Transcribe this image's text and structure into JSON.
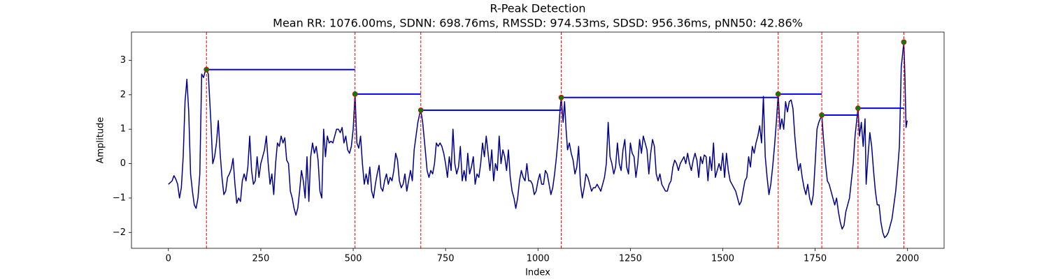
{
  "chart_data": {
    "type": "line",
    "title": "R-Peak Detection",
    "subtitle": "Mean RR: 1076.00ms, SDNN: 698.76ms, RMSSD: 974.53ms, SDSD: 956.36ms, pNN50: 42.86%",
    "x_label": "Index",
    "y_label": "Amplitude",
    "x": [
      0,
      10,
      15,
      20,
      25,
      30,
      35,
      40,
      45,
      50,
      55,
      60,
      65,
      70,
      75,
      80,
      85,
      90,
      95,
      100,
      103,
      108,
      115,
      120,
      125,
      130,
      135,
      140,
      145,
      150,
      155,
      160,
      165,
      170,
      175,
      180,
      185,
      190,
      195,
      200,
      205,
      210,
      215,
      220,
      225,
      230,
      235,
      240,
      245,
      250,
      255,
      260,
      265,
      270,
      275,
      280,
      285,
      290,
      295,
      300,
      305,
      310,
      315,
      320,
      325,
      330,
      335,
      340,
      345,
      350,
      355,
      360,
      365,
      370,
      375,
      380,
      385,
      390,
      395,
      400,
      405,
      410,
      415,
      420,
      425,
      430,
      435,
      440,
      445,
      450,
      455,
      460,
      465,
      470,
      475,
      480,
      485,
      490,
      495,
      500,
      505,
      510,
      515,
      520,
      525,
      530,
      535,
      540,
      545,
      550,
      555,
      560,
      565,
      570,
      575,
      580,
      585,
      590,
      595,
      600,
      605,
      610,
      615,
      620,
      625,
      630,
      635,
      640,
      645,
      650,
      655,
      660,
      665,
      670,
      675,
      680,
      683,
      688,
      695,
      700,
      705,
      710,
      715,
      720,
      725,
      730,
      735,
      740,
      745,
      750,
      755,
      760,
      765,
      770,
      775,
      780,
      785,
      790,
      795,
      800,
      805,
      810,
      815,
      820,
      825,
      830,
      835,
      840,
      845,
      850,
      855,
      860,
      865,
      870,
      875,
      880,
      885,
      890,
      895,
      900,
      905,
      910,
      915,
      920,
      925,
      930,
      935,
      940,
      945,
      950,
      955,
      960,
      965,
      970,
      975,
      980,
      985,
      990,
      995,
      1000,
      1005,
      1010,
      1015,
      1020,
      1025,
      1030,
      1035,
      1040,
      1045,
      1050,
      1055,
      1060,
      1063,
      1068,
      1072,
      1076,
      1080,
      1085,
      1090,
      1095,
      1100,
      1105,
      1110,
      1115,
      1120,
      1125,
      1130,
      1135,
      1140,
      1145,
      1150,
      1155,
      1160,
      1165,
      1170,
      1175,
      1180,
      1185,
      1190,
      1195,
      1200,
      1205,
      1210,
      1215,
      1220,
      1225,
      1230,
      1235,
      1240,
      1245,
      1250,
      1255,
      1260,
      1265,
      1270,
      1275,
      1280,
      1285,
      1290,
      1295,
      1300,
      1305,
      1310,
      1315,
      1320,
      1325,
      1330,
      1335,
      1340,
      1345,
      1350,
      1355,
      1360,
      1365,
      1370,
      1375,
      1380,
      1385,
      1390,
      1395,
      1400,
      1405,
      1410,
      1415,
      1420,
      1425,
      1430,
      1435,
      1440,
      1445,
      1450,
      1455,
      1460,
      1465,
      1470,
      1475,
      1480,
      1485,
      1490,
      1495,
      1500,
      1505,
      1510,
      1515,
      1520,
      1525,
      1530,
      1535,
      1540,
      1545,
      1550,
      1555,
      1560,
      1565,
      1570,
      1575,
      1580,
      1585,
      1590,
      1595,
      1600,
      1605,
      1610,
      1615,
      1620,
      1625,
      1630,
      1635,
      1640,
      1645,
      1650,
      1655,
      1660,
      1665,
      1670,
      1675,
      1680,
      1685,
      1690,
      1695,
      1700,
      1705,
      1710,
      1715,
      1720,
      1725,
      1730,
      1735,
      1740,
      1745,
      1750,
      1755,
      1760,
      1768,
      1772,
      1778,
      1783,
      1788,
      1793,
      1798,
      1803,
      1808,
      1813,
      1818,
      1823,
      1828,
      1833,
      1838,
      1843,
      1848,
      1853,
      1858,
      1866,
      1870,
      1875,
      1880,
      1885,
      1888,
      1893,
      1898,
      1903,
      1908,
      1913,
      1918,
      1923,
      1928,
      1933,
      1938,
      1943,
      1948,
      1953,
      1958,
      1963,
      1968,
      1973,
      1978,
      1983,
      1990,
      1993,
      1996,
      1999
    ],
    "series": [
      {
        "color": "#00008b",
        "values": [
          -0.6,
          -0.5,
          -0.35,
          -0.45,
          -0.6,
          -1.0,
          -0.7,
          0.2,
          1.8,
          2.45,
          1.5,
          -0.3,
          -0.8,
          -1.2,
          -1.3,
          -1.0,
          -0.3,
          2.6,
          2.5,
          2.7,
          2.73,
          2.6,
          1.2,
          0.0,
          0.2,
          0.6,
          1.25,
          0.3,
          -0.4,
          -0.9,
          -0.8,
          -0.4,
          -0.3,
          -0.15,
          0.15,
          -0.6,
          -1.15,
          -1.0,
          -1.1,
          -0.5,
          -0.3,
          -0.5,
          -0.1,
          0.8,
          -0.2,
          -0.6,
          -0.5,
          0.2,
          -0.4,
          0.0,
          0.2,
          0.4,
          0.8,
          0.0,
          -0.6,
          -0.3,
          -0.9,
          0.0,
          0.6,
          0.5,
          0.8,
          0.6,
          0.75,
          0.1,
          0.0,
          -0.8,
          -1.0,
          -1.3,
          -1.5,
          -1.3,
          -0.8,
          -0.2,
          -0.5,
          -1.0,
          0.2,
          -1.1,
          0.2,
          0.6,
          0.3,
          0.5,
          0.1,
          -0.8,
          -1.0,
          1.0,
          0.2,
          0.8,
          0.6,
          0.65,
          0.6,
          0.8,
          1.0,
          1.0,
          0.9,
          1.05,
          0.6,
          0.8,
          0.4,
          0.3,
          0.5,
          1.0,
          2.02,
          0.6,
          0.45,
          0.8,
          0.0,
          -0.6,
          -0.3,
          -0.6,
          -0.1,
          -0.8,
          -1.0,
          -0.6,
          -0.3,
          -0.05,
          -0.7,
          -0.8,
          -0.5,
          -0.3,
          -0.6,
          -0.4,
          -0.5,
          -0.2,
          0.3,
          0.1,
          -0.5,
          -0.7,
          -0.6,
          -0.3,
          -0.8,
          -0.5,
          -0.2,
          -0.5,
          0.4,
          0.8,
          1.2,
          1.45,
          1.55,
          1.2,
          0.4,
          -0.2,
          -0.4,
          -0.2,
          -0.3,
          0.0,
          0.6,
          0.5,
          0.6,
          0.5,
          0.3,
          0.0,
          -0.4,
          0.2,
          -0.2,
          1.0,
          0.0,
          -0.3,
          -0.1,
          0.5,
          -0.5,
          -0.2,
          -0.5,
          0.3,
          -0.3,
          -0.1,
          0.2,
          -0.6,
          -0.3,
          -0.4,
          0.0,
          0.6,
          0.2,
          0.8,
          0.3,
          -0.2,
          0.4,
          -0.5,
          0.0,
          -0.2,
          0.8,
          0.0,
          0.4,
          0.2,
          -0.2,
          0.4,
          -0.4,
          -0.8,
          -1.0,
          -1.3,
          -1.0,
          -0.5,
          -0.2,
          -0.4,
          -0.5,
          0.0,
          -0.5,
          -0.5,
          -0.6,
          -0.9,
          -0.8,
          -0.5,
          -0.3,
          -0.6,
          -0.6,
          -0.2,
          -0.3,
          -0.6,
          -0.9,
          -0.7,
          -0.3,
          0.2,
          0.8,
          1.6,
          1.92,
          1.2,
          1.8,
          1.0,
          0.4,
          0.6,
          0.3,
          0.1,
          -0.3,
          -0.1,
          0.5,
          -0.6,
          -1.0,
          -0.7,
          -0.3,
          -0.4,
          -0.6,
          -0.8,
          -0.7,
          -0.7,
          -0.6,
          -0.7,
          -0.8,
          -0.6,
          -0.4,
          0.0,
          1.2,
          0.2,
          0.0,
          -0.3,
          -0.1,
          0.6,
          0.0,
          -0.2,
          0.4,
          0.7,
          -0.1,
          -0.3,
          0.6,
          0.3,
          0.2,
          -0.4,
          0.0,
          0.7,
          0.3,
          0.8,
          0.6,
          0.4,
          -0.3,
          0.3,
          0.7,
          0.5,
          -0.3,
          -0.5,
          -0.3,
          -0.6,
          -0.7,
          -0.8,
          -0.8,
          -0.6,
          -0.5,
          -0.1,
          0.1,
          0.0,
          -0.2,
          0.0,
          0.1,
          0.2,
          0.0,
          0.3,
          0.0,
          -0.2,
          0.1,
          0.3,
          0.1,
          -0.4,
          0.2,
          0.0,
          0.25,
          0.2,
          -0.5,
          0.2,
          -0.2,
          0.6,
          -0.4,
          -0.2,
          0.0,
          -0.2,
          0.3,
          -0.4,
          0.3,
          -0.2,
          -0.5,
          -0.6,
          -0.7,
          -0.8,
          -1.0,
          -1.2,
          -1.1,
          -0.8,
          -0.5,
          -0.4,
          0.2,
          -0.1,
          0.5,
          0.3,
          0.6,
          0.8,
          1.1,
          0.6,
          1.95,
          0.2,
          -0.4,
          -0.9,
          -0.6,
          -0.1,
          0.5,
          1.2,
          2.02,
          1.0,
          1.3,
          1.0,
          1.8,
          1.5,
          1.8,
          1.85,
          1.6,
          0.8,
          0.2,
          -0.2,
          0.0,
          -0.4,
          -0.7,
          -0.9,
          -0.6,
          -1.0,
          -1.2,
          -0.9,
          0.0,
          1.0,
          1.2,
          1.41,
          0.8,
          0.0,
          -0.5,
          -0.6,
          -0.8,
          -1.0,
          -1.2,
          -1.0,
          -1.4,
          -1.7,
          -1.9,
          -1.8,
          -1.4,
          -1.2,
          -1.0,
          -0.5,
          0.0,
          0.8,
          1.61,
          0.8,
          1.2,
          0.5,
          1.3,
          -0.6,
          0.2,
          0.9,
          0.5,
          -0.2,
          -0.8,
          -1.2,
          -1.2,
          -1.7,
          -2.0,
          -2.15,
          -2.1,
          -2.0,
          -1.8,
          -1.6,
          -1.2,
          -0.8,
          -0.2,
          0.5,
          2.8,
          3.53,
          2.5,
          1.05,
          1.25
        ]
      }
    ],
    "peaks": {
      "x": [
        103,
        505,
        683,
        1063,
        1650,
        1768,
        1866,
        1990
      ],
      "values": [
        2.73,
        2.02,
        1.55,
        1.92,
        2.02,
        1.41,
        1.61,
        3.53
      ],
      "color": "green",
      "edge_color": "red"
    },
    "peak_line_color": "red",
    "interval_line_color": "blue",
    "xlim": [
      -99.95,
      2098.95
    ],
    "ylim": [
      -2.46,
      3.82
    ],
    "xticks": [
      0,
      250,
      500,
      750,
      1000,
      1250,
      1500,
      1750,
      2000
    ],
    "yticks": [
      {
        "value": -2,
        "label": "−2"
      },
      {
        "value": -1,
        "label": "−1"
      },
      0,
      1,
      2,
      3
    ],
    "grid": false
  }
}
